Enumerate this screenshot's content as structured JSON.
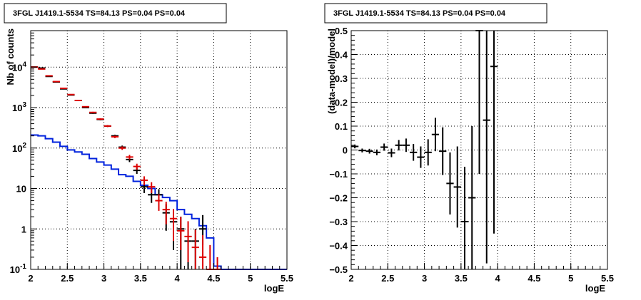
{
  "chart_data": [
    {
      "type": "scatter",
      "title": "3FGL J1419.1-5534 TS=84.13 PS=0.04 PS=0.04",
      "xlabel": "logE",
      "ylabel": "Nb of counts",
      "xlim": [
        2,
        5.5
      ],
      "ylim": [
        0.1,
        80000
      ],
      "yscale": "log",
      "grid": true,
      "x_ticks": [
        "2",
        "2.5",
        "3",
        "3.5",
        "4",
        "4.5",
        "5",
        "5.5"
      ],
      "y_ticks": [
        {
          "value": 0.1,
          "label": "10",
          "exp": "-1"
        },
        {
          "value": 1,
          "label": "1",
          "exp": ""
        },
        {
          "value": 10,
          "label": "10",
          "exp": ""
        },
        {
          "value": 100,
          "label": "10",
          "exp": "2"
        },
        {
          "value": 1000,
          "label": "10",
          "exp": "3"
        },
        {
          "value": 10000,
          "label": "10",
          "exp": "4"
        }
      ],
      "bin_edges": [
        2.0,
        2.1,
        2.2,
        2.3,
        2.4,
        2.5,
        2.6,
        2.7,
        2.8,
        2.9,
        3.0,
        3.1,
        3.2,
        3.3,
        3.4,
        3.5,
        3.6,
        3.7,
        3.8,
        3.9,
        4.0,
        4.1,
        4.2,
        4.3,
        4.4,
        4.5,
        4.6,
        4.7,
        4.8,
        4.9,
        5.0,
        5.1,
        5.2,
        5.3,
        5.4,
        5.5
      ],
      "series": [
        {
          "style": "step-line",
          "color": "#0022dd",
          "values": [
            210,
            200,
            170,
            140,
            110,
            90,
            80,
            70,
            55,
            45,
            38,
            30,
            22,
            20,
            15,
            12,
            10,
            7,
            6,
            5,
            3,
            2.3,
            1.8,
            1.2,
            0.6,
            0.12,
            0.1,
            0.1,
            0.1,
            0.1,
            0.1,
            0.1,
            0.1,
            0.1,
            0.1
          ]
        },
        {
          "style": "error-bars",
          "color": "#000000",
          "x": [
            2.05,
            2.15,
            2.25,
            2.35,
            2.45,
            2.55,
            2.65,
            2.75,
            2.85,
            2.95,
            3.05,
            3.15,
            3.25,
            3.35,
            3.45,
            3.55,
            3.65,
            3.75,
            3.85,
            3.95,
            4.05,
            4.15,
            4.25,
            4.35
          ],
          "y": [
            10100,
            9500,
            5900,
            4300,
            2900,
            2050,
            1500,
            1000,
            730,
            510,
            350,
            200,
            105,
            52,
            28,
            11,
            7,
            7,
            2.5,
            1.5,
            1,
            0.5,
            0.5,
            1
          ],
          "yerr_low": [
            100,
            100,
            80,
            70,
            55,
            45,
            40,
            32,
            27,
            23,
            19,
            14,
            10,
            7,
            5,
            3.3,
            2.6,
            2.6,
            1.6,
            1.2,
            1,
            0.5,
            0.5,
            0.6
          ],
          "yerr_high": [
            100,
            100,
            80,
            70,
            55,
            45,
            40,
            32,
            27,
            23,
            19,
            14,
            10,
            7,
            5,
            3.3,
            2.6,
            2.6,
            1.6,
            1.2,
            1,
            0.5,
            0.5,
            1.2
          ]
        },
        {
          "style": "error-bars",
          "color": "#dd0000",
          "x": [
            2.05,
            2.15,
            2.25,
            2.35,
            2.45,
            2.55,
            2.65,
            2.75,
            2.85,
            2.95,
            3.05,
            3.15,
            3.25,
            3.35,
            3.45,
            3.55,
            3.65,
            3.75,
            3.85,
            3.95,
            4.05,
            4.15,
            4.25,
            4.35,
            4.45,
            4.55
          ],
          "y": [
            10000,
            9000,
            6100,
            4400,
            3000,
            2100,
            1500,
            1050,
            760,
            520,
            350,
            190,
            100,
            60,
            35,
            16,
            11,
            5,
            3,
            1.8,
            0.9,
            0.65,
            0.35,
            0.2,
            0.1,
            0.1
          ],
          "yerr_low": [
            100,
            95,
            78,
            66,
            55,
            46,
            39,
            32,
            28,
            23,
            19,
            14,
            10,
            7.7,
            6,
            4,
            3.3,
            2.2,
            1.7,
            1.3,
            0.6,
            0.5,
            0.35,
            0.2,
            0.1,
            0.1
          ],
          "yerr_high": [
            100,
            95,
            78,
            66,
            55,
            46,
            39,
            32,
            28,
            23,
            19,
            14,
            10,
            7.7,
            6,
            4,
            3.3,
            2.2,
            1.7,
            1.3,
            1.1,
            0.9,
            0.6,
            0.5,
            0.3,
            0.1
          ]
        }
      ]
    },
    {
      "type": "scatter",
      "title": "3FGL J1419.1-5534 TS=84.13 PS=0.04 PS=0.04",
      "xlabel": "logE",
      "ylabel": "(data-model)/model",
      "xlim": [
        2,
        5.5
      ],
      "ylim": [
        -0.5,
        0.5
      ],
      "grid": true,
      "x_ticks": [
        "2",
        "2.5",
        "3",
        "3.5",
        "4",
        "4.5",
        "5",
        "5.5"
      ],
      "y_ticks": [
        "−0.5",
        "−0.4",
        "−0.3",
        "−0.2",
        "−0.1",
        "0",
        "0.1",
        "0.2",
        "0.3",
        "0.4",
        "0.5"
      ],
      "series": [
        {
          "style": "error-bars",
          "color": "#000000",
          "x": [
            2.05,
            2.15,
            2.25,
            2.35,
            2.45,
            2.55,
            2.65,
            2.75,
            2.85,
            2.95,
            3.05,
            3.15,
            3.25,
            3.35,
            3.45,
            3.55,
            3.65,
            3.75,
            3.85,
            3.95
          ],
          "y": [
            0.015,
            -0.002,
            -0.005,
            -0.01,
            0.012,
            -0.012,
            0.02,
            0.02,
            -0.01,
            -0.03,
            -0.01,
            0.065,
            -0.005,
            -0.14,
            -0.155,
            -0.3,
            -0.2,
            0.5,
            0.125,
            0.35
          ],
          "yerr": [
            0.008,
            0.008,
            0.01,
            0.012,
            0.015,
            0.018,
            0.022,
            0.028,
            0.035,
            0.045,
            0.055,
            0.07,
            0.1,
            0.13,
            0.17,
            0.23,
            0.3,
            0.6,
            0.6,
            0.7
          ]
        }
      ]
    }
  ]
}
